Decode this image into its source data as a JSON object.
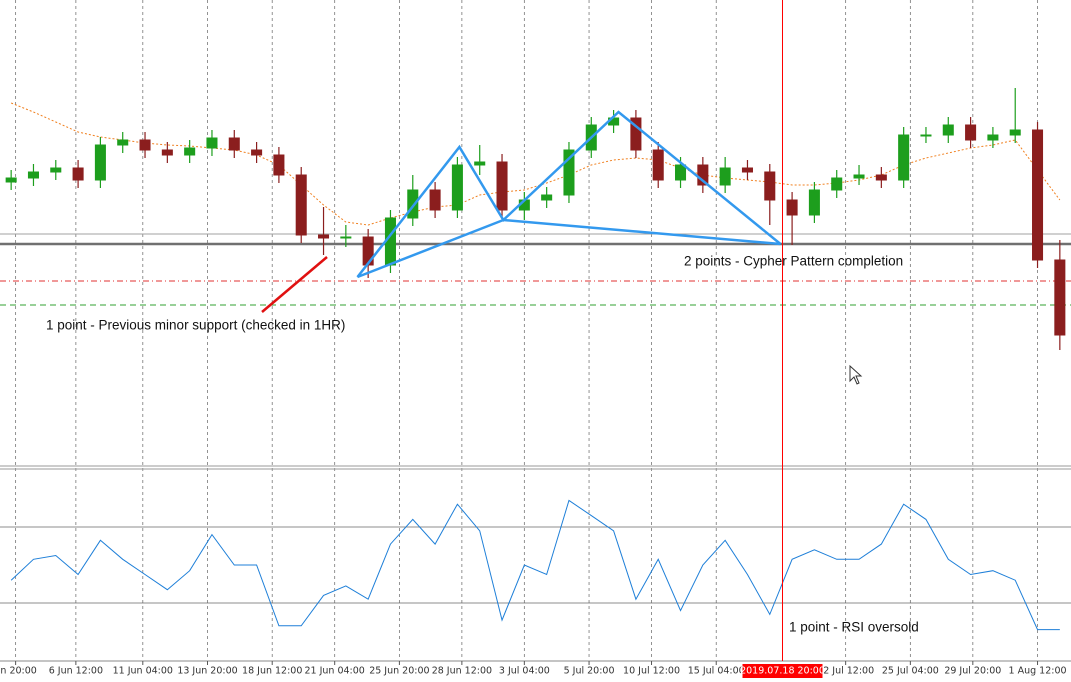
{
  "chart_data": {
    "type": "candlestick",
    "xlim": [
      -0.5,
      47.5
    ],
    "xticks": [
      {
        "value": 0.2,
        "label": "un 20:00"
      },
      {
        "value": 2.9,
        "label": "6 Jun 12:00"
      },
      {
        "value": 5.9,
        "label": "11 Jun 04:00"
      },
      {
        "value": 8.8,
        "label": "13 Jun 20:00"
      },
      {
        "value": 11.7,
        "label": "18 Jun 12:00"
      },
      {
        "value": 14.5,
        "label": "21 Jun 04:00"
      },
      {
        "value": 17.4,
        "label": "25 Jun 20:00"
      },
      {
        "value": 20.2,
        "label": "28 Jun 12:00"
      },
      {
        "value": 23.0,
        "label": "3 Jul 04:00"
      },
      {
        "value": 25.9,
        "label": "5 Jul 20:00"
      },
      {
        "value": 28.7,
        "label": "10 Jul 12:00"
      },
      {
        "value": 31.6,
        "label": "15 Jul 04:00"
      },
      {
        "value": 37.4,
        "label": "22 Jul 12:00"
      },
      {
        "value": 40.3,
        "label": "25 Jul 04:00"
      },
      {
        "value": 43.1,
        "label": "29 Jul 20:00"
      },
      {
        "value": 46.0,
        "label": "1 Aug 12:00"
      }
    ],
    "grid": true,
    "ylim": [
      0,
      465
    ],
    "up_color": "#1d9e1d",
    "down_color": "#8b1e1e",
    "open": [
      283,
      287,
      293,
      297,
      285,
      320,
      325,
      315,
      310,
      317,
      327,
      315,
      310,
      290,
      230,
      227,
      228,
      200,
      247,
      275,
      255,
      300,
      303,
      255,
      265,
      270,
      315,
      340,
      347,
      315,
      285,
      300,
      280,
      297,
      293,
      265,
      250,
      275,
      287,
      290,
      285,
      330,
      330,
      340,
      325,
      330,
      335,
      205
    ],
    "high": [
      295,
      301,
      305,
      305,
      328,
      333,
      333,
      323,
      325,
      335,
      335,
      323,
      318,
      298,
      258,
      240,
      236,
      255,
      290,
      283,
      308,
      320,
      311,
      273,
      278,
      323,
      348,
      355,
      355,
      323,
      308,
      308,
      308,
      305,
      301,
      273,
      283,
      295,
      300,
      298,
      338,
      338,
      348,
      348,
      338,
      377,
      343,
      225
    ],
    "low": [
      275,
      279,
      285,
      277,
      277,
      312,
      307,
      302,
      302,
      309,
      307,
      302,
      282,
      222,
      210,
      218,
      187,
      192,
      239,
      247,
      247,
      290,
      247,
      245,
      257,
      262,
      307,
      332,
      307,
      277,
      277,
      272,
      272,
      285,
      240,
      220,
      242,
      267,
      280,
      277,
      277,
      322,
      322,
      317,
      317,
      322,
      197,
      115
    ],
    "close": [
      287,
      293,
      297,
      285,
      320,
      325,
      315,
      310,
      317,
      327,
      315,
      310,
      290,
      230,
      227,
      228,
      200,
      247,
      275,
      255,
      300,
      303,
      255,
      265,
      270,
      315,
      340,
      347,
      315,
      285,
      300,
      280,
      297,
      293,
      265,
      250,
      275,
      287,
      290,
      285,
      330,
      330,
      340,
      325,
      330,
      335,
      205,
      130
    ],
    "ma": {
      "color": "#f08020",
      "values": [
        362,
        353,
        343,
        333,
        328,
        325,
        322,
        320,
        319,
        317,
        315,
        310,
        300,
        280,
        260,
        243,
        240,
        247,
        253,
        258,
        260,
        270,
        273,
        275,
        282,
        290,
        300,
        305,
        307,
        305,
        297,
        290,
        287,
        285,
        283,
        280,
        280,
        282,
        285,
        290,
        300,
        307,
        312,
        317,
        320,
        325,
        295,
        265
      ]
    },
    "levels": [
      {
        "value": 231,
        "color": "#a0a0a0",
        "style": "solid"
      },
      {
        "value": 221,
        "color": "#707070",
        "style": "solid"
      },
      {
        "value": 184,
        "color": "#e03030",
        "style": "dashdot"
      },
      {
        "value": 160,
        "color": "#30a030",
        "style": "dashed"
      }
    ],
    "pattern": {
      "color": "#3399ee",
      "x": [
        15.52,
        20.09,
        22.06,
        27.22,
        34.48
      ],
      "values": [
        188,
        318,
        245,
        353,
        221
      ]
    },
    "crosshair": {
      "x": 34.57,
      "label": "2019.07.18 20:00",
      "color": "#ff0000"
    },
    "annotations": [
      "1 point - Previous minor support (checked in 1HR)",
      "2 points - Cypher Pattern completion",
      "1 point - RSI oversold"
    ],
    "rsi": {
      "type": "line",
      "ylim": [
        0,
        100
      ],
      "levels": [
        30,
        70
      ],
      "color": "#1e7fd8",
      "values": [
        42,
        53,
        55,
        45,
        63,
        53,
        45,
        37,
        47,
        66,
        50,
        50,
        18,
        18,
        34,
        39,
        32,
        61,
        74,
        61,
        82,
        68,
        21,
        50,
        45,
        84,
        76,
        68,
        32,
        53,
        26,
        50,
        63,
        45,
        24,
        53,
        58,
        53,
        53,
        61,
        82,
        74,
        53,
        45,
        47,
        42,
        16,
        16
      ]
    }
  }
}
